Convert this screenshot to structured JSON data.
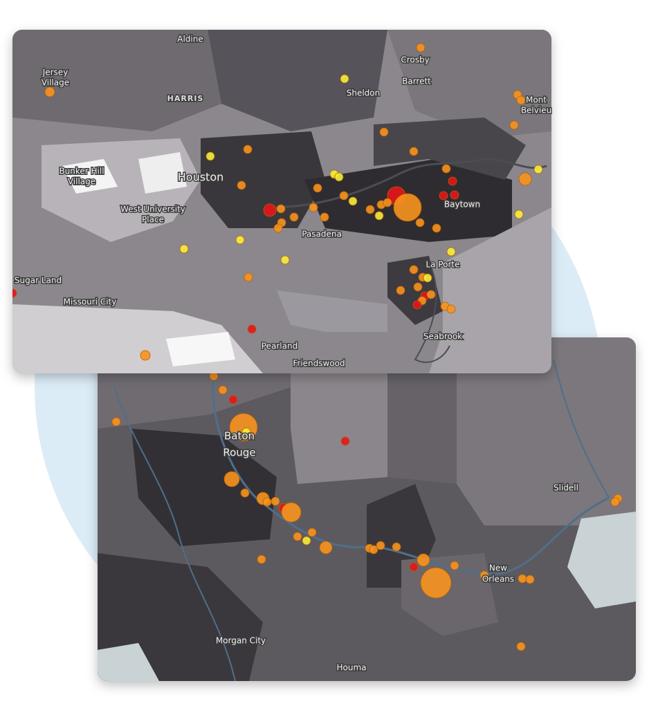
{
  "maps": [
    {
      "labels": [
        "Aldine",
        "Jersey",
        "Village",
        "Crosby",
        "Barrett",
        "Sheldon",
        "HARRIS",
        "Mont",
        "Belvieu",
        "Bunker Hill",
        "Village",
        "Houston",
        "West University",
        "Place",
        "Baytown",
        "Pasadena",
        "La Porte",
        "Sugar Land",
        "Missouri City",
        "Seabrook",
        "Pearland",
        "Friendswood"
      ]
    },
    {
      "labels": [
        "Baton",
        "Rouge",
        "Slidell",
        "New",
        "Orleans",
        "Morgan City",
        "Houma"
      ]
    }
  ]
}
